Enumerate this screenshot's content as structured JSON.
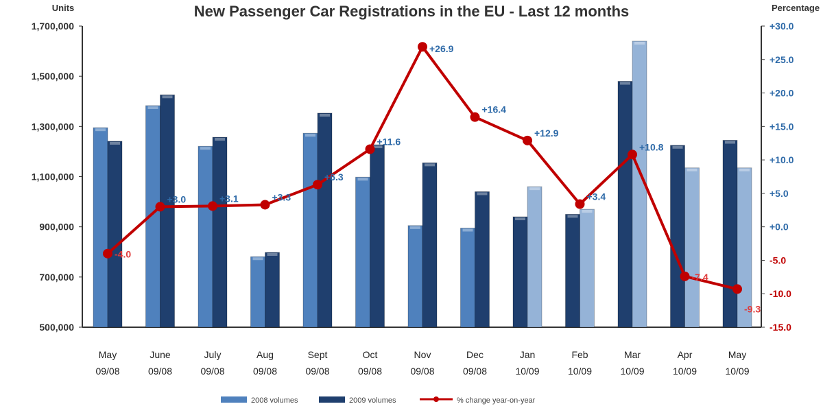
{
  "chart_data": {
    "type": "bar",
    "title": "New Passenger Car Registrations in the EU - Last 12 months",
    "ylabel": "Units",
    "y2label": "Percentage",
    "ylim": [
      500000,
      1700000
    ],
    "y2lim": [
      -15,
      30
    ],
    "yticks": [
      "1,700,000",
      "1,500,000",
      "1,300,000",
      "1,100,000",
      "900,000",
      "700,000",
      "500,000"
    ],
    "y2ticks": [
      "+30.0",
      "+25.0",
      "+20.0",
      "+15.0",
      "+10.0",
      "+5.0",
      "+0.0",
      "-5.0",
      "-10.0",
      "-15.0"
    ],
    "categories": [
      [
        "May",
        "09/08"
      ],
      [
        "June",
        "09/08"
      ],
      [
        "July",
        "09/08"
      ],
      [
        "Aug",
        "09/08"
      ],
      [
        "Sept",
        "09/08"
      ],
      [
        "Oct",
        "09/08"
      ],
      [
        "Nov",
        "09/08"
      ],
      [
        "Dec",
        "09/08"
      ],
      [
        "Jan",
        "10/09"
      ],
      [
        "Feb",
        "10/09"
      ],
      [
        "Mar",
        "10/09"
      ],
      [
        "Apr",
        "10/09"
      ],
      [
        "May",
        "10/09"
      ]
    ],
    "series": [
      {
        "name": "2008 volumes",
        "values": [
          1295000,
          1383000,
          1221000,
          781000,
          1273000,
          1098000,
          905000,
          895000,
          940000,
          950000,
          1480000,
          1225000,
          1245000
        ]
      },
      {
        "name": "2009 volumes",
        "values": [
          1241000,
          1426000,
          1257000,
          798000,
          1353000,
          1227000,
          1155000,
          1040000,
          1060000,
          970000,
          1640000,
          1135000,
          1135000
        ]
      }
    ],
    "bar_colors": {
      "first": [
        "#4f81bd",
        "#4f81bd",
        "#4f81bd",
        "#4f81bd",
        "#4f81bd",
        "#4f81bd",
        "#4f81bd",
        "#4f81bd",
        "#1f3f6e",
        "#1f3f6e",
        "#1f3f6e",
        "#1f3f6e",
        "#1f3f6e"
      ],
      "second": [
        "#1f3f6e",
        "#1f3f6e",
        "#1f3f6e",
        "#1f3f6e",
        "#1f3f6e",
        "#1f3f6e",
        "#1f3f6e",
        "#1f3f6e",
        "#95b3d7",
        "#95b3d7",
        "#95b3d7",
        "#95b3d7",
        "#95b3d7"
      ]
    },
    "line": {
      "name": "% change year-on-year",
      "values": [
        -4.0,
        3.0,
        3.1,
        3.3,
        6.3,
        11.6,
        26.9,
        16.4,
        12.9,
        3.4,
        10.8,
        -7.4,
        -9.3
      ],
      "labels": [
        "-4.0",
        "+3.0",
        "+3.1",
        "+3.3",
        "+6.3",
        "+11.6",
        "+26.9",
        "+16.4",
        "+12.9",
        "+3.4",
        "+10.8",
        "-7.4",
        "-9.3"
      ],
      "color": "#c00000"
    },
    "legend_position": "bottom",
    "grid": false
  }
}
